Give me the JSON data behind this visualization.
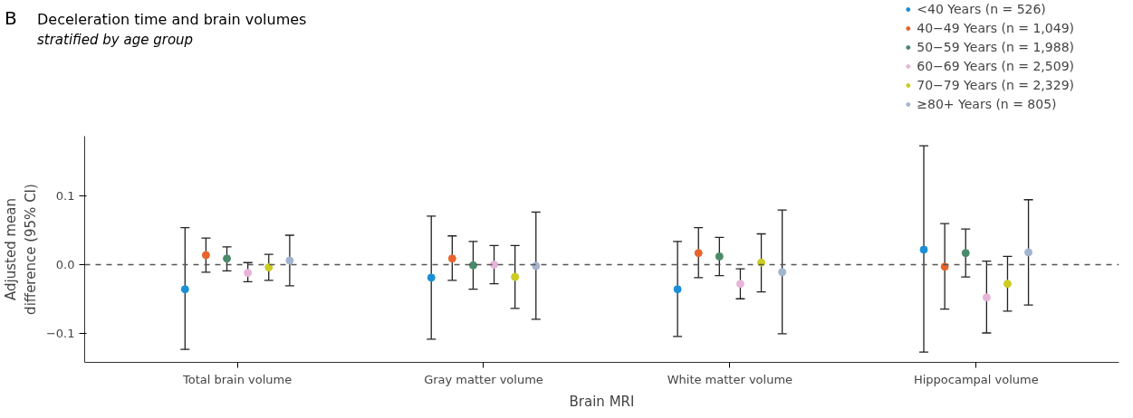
{
  "chart_data": {
    "type": "scatter",
    "title": "Deceleration time and brain volumes",
    "subtitle": "stratified by age group",
    "annotations": [
      "B"
    ],
    "xlabel": "Brain MRI",
    "ylabel": "Adjusted mean difference (95% CI)",
    "categories": [
      "Total brain volume",
      "Gray matter volume",
      "White matter volume",
      "Hippocampal volume"
    ],
    "ylim": [
      -0.143,
      0.188
    ],
    "yticks": [
      {
        "value": -0.1,
        "label": "−0.1"
      },
      {
        "value": 0,
        "label": "0.0"
      },
      {
        "value": 0.1,
        "label": "0.1"
      }
    ],
    "grid": false,
    "legend": "top right",
    "marker": "circle",
    "ref_lines": [
      {
        "axis": "y",
        "value": 0,
        "label": null,
        "color": "#555555",
        "line_style": "dashed"
      }
    ],
    "series": [
      {
        "name": "<40 Years (n = 526)",
        "color": "#1a8fd6",
        "values": [
          -0.036,
          -0.019,
          -0.036,
          0.022
        ],
        "errors": [
          [
            -0.124,
            0.054
          ],
          [
            -0.109,
            0.071
          ],
          [
            -0.105,
            0.034
          ],
          [
            -0.128,
            0.174
          ]
        ]
      },
      {
        "name": "40−49 Years (n = 1,049)",
        "color": "#e8642c",
        "values": [
          0.014,
          0.009,
          0.017,
          -0.003
        ],
        "errors": [
          [
            -0.011,
            0.039
          ],
          [
            -0.023,
            0.042
          ],
          [
            -0.019,
            0.054
          ],
          [
            -0.065,
            0.06
          ]
        ]
      },
      {
        "name": "50−59 Years (n = 1,988)",
        "color": "#4a8a6a",
        "values": [
          0.009,
          -0.001,
          0.012,
          0.017
        ],
        "errors": [
          [
            -0.009,
            0.026
          ],
          [
            -0.036,
            0.034
          ],
          [
            -0.016,
            0.04
          ],
          [
            -0.018,
            0.052
          ]
        ]
      },
      {
        "name": "60−69 Years (n = 2,509)",
        "color": "#e8b4d8",
        "values": [
          -0.012,
          0.0,
          -0.028,
          -0.048
        ],
        "errors": [
          [
            -0.025,
            0.003
          ],
          [
            -0.028,
            0.028
          ],
          [
            -0.05,
            -0.006
          ],
          [
            -0.1,
            0.005
          ]
        ]
      },
      {
        "name": "70−79 Years (n = 2,329)",
        "color": "#cccc22",
        "values": [
          -0.004,
          -0.018,
          0.003,
          -0.028
        ],
        "errors": [
          [
            -0.023,
            0.015
          ],
          [
            -0.064,
            0.028
          ],
          [
            -0.04,
            0.045
          ],
          [
            -0.068,
            0.012
          ]
        ]
      },
      {
        "name": "≥80+ Years (n = 805)",
        "color": "#a3b4d0",
        "values": [
          0.006,
          -0.002,
          -0.011,
          0.018
        ],
        "errors": [
          [
            -0.031,
            0.043
          ],
          [
            -0.08,
            0.077
          ],
          [
            -0.101,
            0.08
          ],
          [
            -0.059,
            0.095
          ]
        ]
      }
    ]
  }
}
